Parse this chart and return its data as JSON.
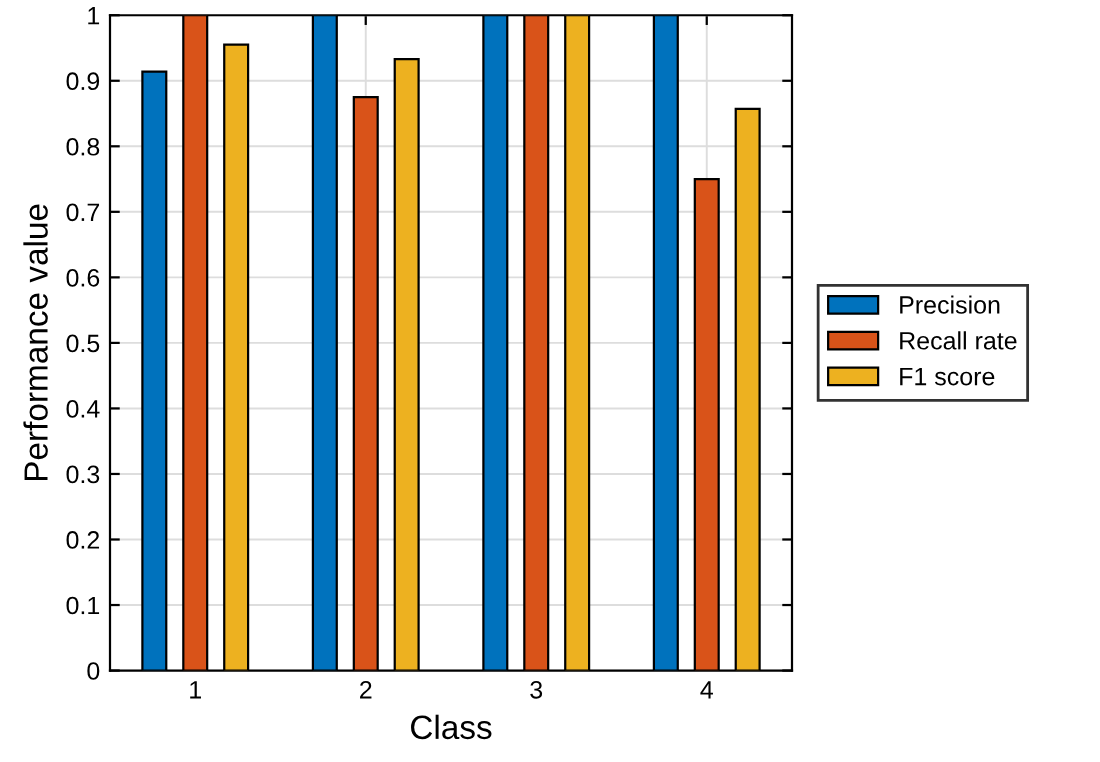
{
  "chart_data": {
    "type": "bar",
    "xlabel": "Class",
    "ylabel": "Performance value",
    "categories": [
      "1",
      "2",
      "3",
      "4"
    ],
    "series": [
      {
        "name": "Precision",
        "color": "#0072bd",
        "values": [
          0.914,
          1,
          1,
          1
        ]
      },
      {
        "name": "Recall rate",
        "color": "#d95319",
        "values": [
          1,
          0.875,
          1,
          0.75
        ]
      },
      {
        "name": "F1 score",
        "color": "#edb120",
        "values": [
          0.955,
          0.933,
          1,
          0.857
        ]
      }
    ],
    "ylim": [
      0,
      1
    ],
    "yticks": [
      0,
      0.1,
      0.2,
      0.3,
      0.4,
      0.5,
      0.6,
      0.7,
      0.8,
      0.9,
      1
    ],
    "grid": true,
    "legend": "right"
  }
}
